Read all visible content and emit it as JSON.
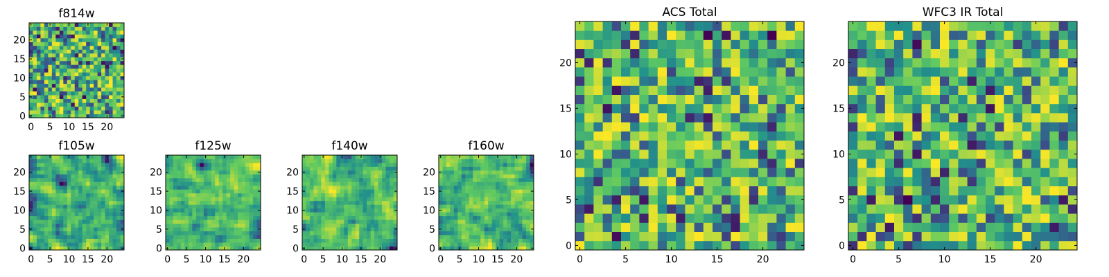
{
  "figure": {
    "colormap": "viridis",
    "colormap_stops": [
      "#440154",
      "#3b528b",
      "#21918c",
      "#5ec962",
      "#fde725"
    ],
    "axes_color": "#000000",
    "background": "#ffffff"
  },
  "chart_data": [
    {
      "id": "f814w",
      "type": "heatmap",
      "title": "f814w",
      "grid_size": 25,
      "xlim": [
        -0.5,
        24.5
      ],
      "ylim": [
        -0.5,
        24.5
      ],
      "x_ticks": [
        0,
        5,
        10,
        15,
        20
      ],
      "y_ticks": [
        0,
        5,
        10,
        15,
        20
      ],
      "x_tick_labels": [
        "0",
        "5",
        "10",
        "15",
        "20"
      ],
      "y_tick_labels": [
        "0",
        "5",
        "10",
        "15",
        "20"
      ],
      "value_range": [
        0,
        1
      ],
      "seed": 11,
      "smooth": 0
    },
    {
      "id": "f105w",
      "type": "heatmap",
      "title": "f105w",
      "grid_size": 25,
      "xlim": [
        -0.5,
        24.5
      ],
      "ylim": [
        -0.5,
        24.5
      ],
      "x_ticks": [
        0,
        5,
        10,
        15,
        20
      ],
      "y_ticks": [
        0,
        5,
        10,
        15,
        20
      ],
      "x_tick_labels": [
        "0",
        "5",
        "10",
        "15",
        "20"
      ],
      "y_tick_labels": [
        "0",
        "5",
        "10",
        "15",
        "20"
      ],
      "value_range": [
        0,
        1
      ],
      "seed": 23,
      "smooth": 1
    },
    {
      "id": "f125w",
      "type": "heatmap",
      "title": "f125w",
      "grid_size": 25,
      "xlim": [
        -0.5,
        24.5
      ],
      "ylim": [
        -0.5,
        24.5
      ],
      "x_ticks": [
        0,
        5,
        10,
        15,
        20
      ],
      "y_ticks": [
        0,
        5,
        10,
        15,
        20
      ],
      "x_tick_labels": [
        "0",
        "5",
        "10",
        "15",
        "20"
      ],
      "y_tick_labels": [
        "0",
        "5",
        "10",
        "15",
        "20"
      ],
      "value_range": [
        0,
        1
      ],
      "seed": 37,
      "smooth": 1
    },
    {
      "id": "f140w",
      "type": "heatmap",
      "title": "f140w",
      "grid_size": 25,
      "xlim": [
        -0.5,
        24.5
      ],
      "ylim": [
        -0.5,
        24.5
      ],
      "x_ticks": [
        0,
        5,
        10,
        15,
        20
      ],
      "y_ticks": [
        0,
        5,
        10,
        15,
        20
      ],
      "x_tick_labels": [
        "0",
        "5",
        "10",
        "15",
        "20"
      ],
      "y_tick_labels": [
        "0",
        "5",
        "10",
        "15",
        "20"
      ],
      "value_range": [
        0,
        1
      ],
      "seed": 41,
      "smooth": 1
    },
    {
      "id": "f160w",
      "type": "heatmap",
      "title": "f160w",
      "grid_size": 25,
      "xlim": [
        -0.5,
        24.5
      ],
      "ylim": [
        -0.5,
        24.5
      ],
      "x_ticks": [
        0,
        5,
        10,
        15,
        20
      ],
      "y_ticks": [
        0,
        5,
        10,
        15,
        20
      ],
      "x_tick_labels": [
        "0",
        "5",
        "10",
        "15",
        "20"
      ],
      "y_tick_labels": [
        "0",
        "5",
        "10",
        "15",
        "20"
      ],
      "value_range": [
        0,
        1
      ],
      "seed": 53,
      "smooth": 1
    },
    {
      "id": "acs-total",
      "type": "heatmap",
      "title": "ACS Total",
      "grid_size": 25,
      "xlim": [
        -0.5,
        24.5
      ],
      "ylim": [
        -0.5,
        24.5
      ],
      "x_ticks": [
        0,
        5,
        10,
        15,
        20
      ],
      "y_ticks": [
        0,
        5,
        10,
        15,
        20
      ],
      "x_tick_labels": [
        "0",
        "5",
        "10",
        "15",
        "20"
      ],
      "y_tick_labels": [
        "0",
        "5",
        "10",
        "15",
        "20"
      ],
      "value_range": [
        0,
        1
      ],
      "seed": 67,
      "smooth": 0
    },
    {
      "id": "wfc3-ir-total",
      "type": "heatmap",
      "title": "WFC3 IR Total",
      "grid_size": 25,
      "xlim": [
        -0.5,
        24.5
      ],
      "ylim": [
        -0.5,
        24.5
      ],
      "x_ticks": [
        0,
        5,
        10,
        15,
        20
      ],
      "y_ticks": [
        0,
        5,
        10,
        15,
        20
      ],
      "x_tick_labels": [
        "0",
        "5",
        "10",
        "15",
        "20"
      ],
      "y_tick_labels": [
        "0",
        "5",
        "10",
        "15",
        "20"
      ],
      "value_range": [
        0,
        1
      ],
      "seed": 79,
      "smooth": 0
    }
  ]
}
